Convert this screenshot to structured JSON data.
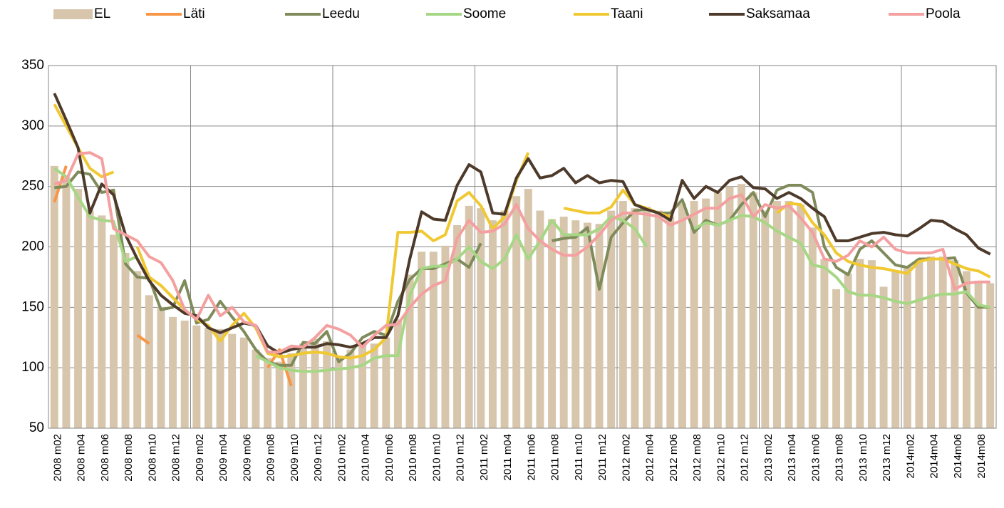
{
  "chart_data": {
    "type": "combo",
    "categories": [
      "2008 m02",
      null,
      "2008 m04",
      null,
      "2008 m06",
      null,
      "2008 m08",
      null,
      "2008 m10",
      null,
      "2008 m12",
      null,
      "2009 m02",
      null,
      "2009 m04",
      null,
      "2009 m06",
      null,
      "2009 m08",
      null,
      "2009 m10",
      null,
      "2009 m12",
      null,
      "2010 m02",
      null,
      "2010 m04",
      null,
      "2010 m06",
      null,
      "2010 m08",
      null,
      "2010 m10",
      null,
      "2010 m12",
      null,
      "2011 m02",
      null,
      "2011 m04",
      null,
      "2011 m06",
      null,
      "2011 m08",
      null,
      "2011 m10",
      null,
      "2011 m12",
      null,
      "2012 m02",
      null,
      "2012 m04",
      null,
      "2012 m06",
      null,
      "2012 m08",
      null,
      "2012 m10",
      null,
      "2012 m12",
      null,
      "2013 m02",
      null,
      "2013 m04",
      null,
      "2013 m06",
      null,
      "2013 m08",
      null,
      "2013 m10",
      null,
      "2013 m12",
      null,
      "2014m02",
      null,
      "2014m04",
      null,
      "2014m06",
      null,
      "2014m08",
      null
    ],
    "ylim": [
      50,
      350
    ],
    "yticks": [
      50,
      100,
      150,
      200,
      250,
      300,
      350
    ],
    "grid": true,
    "legend": "top",
    "series": [
      {
        "name": "EL",
        "type": "bar",
        "color": "#d8c6ac",
        "values": [
          267,
          258,
          248,
          230,
          226,
          210,
          195,
          180,
          160,
          150,
          142,
          139,
          135,
          133,
          132,
          128,
          125,
          115,
          108,
          105,
          112,
          120,
          124,
          122,
          110,
          115,
          120,
          120,
          125,
          140,
          177,
          196,
          196,
          201,
          218,
          234,
          232,
          222,
          230,
          242,
          248,
          230,
          223,
          225,
          222,
          220,
          219,
          230,
          238,
          232,
          233,
          230,
          225,
          236,
          238,
          240,
          245,
          250,
          252,
          245,
          230,
          238,
          238,
          235,
          216,
          190,
          165,
          178,
          190,
          189,
          167,
          180,
          184,
          190,
          192,
          192,
          189,
          180,
          172,
          170
        ]
      },
      {
        "name": "Läti",
        "type": "line",
        "color": "#f79646",
        "values": [
          237,
          267,
          null,
          null,
          null,
          null,
          null,
          127,
          120,
          null,
          null,
          null,
          null,
          null,
          null,
          null,
          null,
          null,
          100,
          115,
          85,
          null,
          null,
          null,
          null,
          null,
          null,
          null,
          null,
          null,
          null,
          null,
          null,
          null,
          null,
          null,
          null,
          null,
          null,
          null,
          null,
          null,
          null,
          null,
          null,
          null,
          null,
          null,
          null,
          null,
          null,
          null,
          null,
          null,
          null,
          null,
          null,
          null,
          null,
          null,
          null,
          null,
          null,
          null,
          null,
          null,
          null,
          null,
          null,
          null,
          null,
          null,
          null,
          null,
          null,
          null,
          null,
          null,
          null,
          null
        ]
      },
      {
        "name": "Leedu",
        "type": "line",
        "color": "#7f8b5b",
        "values": [
          249,
          250,
          262,
          260,
          245,
          247,
          186,
          175,
          174,
          148,
          150,
          172,
          137,
          140,
          155,
          142,
          130,
          115,
          105,
          102,
          102,
          121,
          120,
          130,
          105,
          112,
          125,
          130,
          127,
          155,
          173,
          182,
          182,
          186,
          190,
          183,
          203,
          null,
          null,
          null,
          null,
          null,
          205,
          207,
          208,
          216,
          165,
          208,
          220,
          230,
          231,
          228,
          228,
          239,
          212,
          222,
          218,
          222,
          235,
          245,
          225,
          247,
          251,
          251,
          245,
          200,
          183,
          177,
          198,
          205,
          195,
          185,
          183,
          190,
          190,
          190,
          191,
          162,
          150,
          150
        ]
      },
      {
        "name": "Soome",
        "type": "line",
        "color": "#a6d785",
        "values": [
          265,
          258,
          241,
          225,
          222,
          221,
          188,
          192,
          null,
          null,
          null,
          null,
          null,
          null,
          null,
          null,
          null,
          110,
          105,
          100,
          98,
          97,
          97,
          98,
          99,
          100,
          102,
          108,
          110,
          110,
          160,
          182,
          184,
          184,
          190,
          200,
          188,
          182,
          190,
          210,
          190,
          205,
          222,
          210,
          210,
          210,
          215,
          225,
          222,
          215,
          200,
          null,
          null,
          null,
          215,
          220,
          218,
          222,
          226,
          225,
          220,
          213,
          208,
          203,
          185,
          183,
          175,
          163,
          160,
          160,
          158,
          155,
          153,
          156,
          159,
          161,
          161,
          163,
          152,
          150
        ]
      },
      {
        "name": "Taani",
        "type": "line",
        "color": "#f0c832",
        "values": [
          318,
          300,
          282,
          265,
          258,
          262,
          null,
          200,
          175,
          168,
          158,
          148,
          140,
          135,
          122,
          135,
          145,
          133,
          112,
          109,
          110,
          112,
          113,
          112,
          109,
          108,
          110,
          115,
          125,
          212,
          212,
          213,
          205,
          210,
          238,
          245,
          234,
          215,
          225,
          255,
          278,
          null,
          null,
          232,
          230,
          228,
          228,
          233,
          247,
          235,
          232,
          228,
          225,
          null,
          null,
          null,
          null,
          null,
          null,
          null,
          null,
          228,
          236,
          235,
          220,
          210,
          195,
          188,
          185,
          183,
          182,
          180,
          178,
          188,
          190,
          190,
          186,
          182,
          180,
          175
        ]
      },
      {
        "name": "Saksamaa",
        "type": "line",
        "color": "#4d3a2a",
        "values": [
          327,
          305,
          282,
          228,
          252,
          243,
          210,
          190,
          172,
          160,
          152,
          145,
          143,
          133,
          129,
          133,
          137,
          135,
          118,
          112,
          115,
          117,
          117,
          120,
          119,
          117,
          120,
          125,
          125,
          143,
          190,
          229,
          223,
          222,
          251,
          268,
          262,
          228,
          227,
          257,
          273,
          257,
          259,
          265,
          253,
          259,
          253,
          255,
          254,
          235,
          231,
          228,
          222,
          255,
          240,
          250,
          245,
          255,
          258,
          249,
          248,
          240,
          245,
          240,
          232,
          225,
          205,
          205,
          208,
          211,
          212,
          210,
          209,
          215,
          222,
          221,
          215,
          210,
          199,
          194
        ]
      },
      {
        "name": "Poola",
        "type": "line",
        "color": "#f4a0a0",
        "values": [
          252,
          255,
          277,
          278,
          273,
          215,
          210,
          205,
          192,
          187,
          172,
          148,
          140,
          160,
          143,
          150,
          138,
          135,
          113,
          113,
          118,
          117,
          125,
          135,
          132,
          127,
          117,
          127,
          135,
          136,
          150,
          161,
          168,
          172,
          207,
          222,
          212,
          213,
          219,
          235,
          215,
          205,
          198,
          193,
          193,
          200,
          210,
          222,
          228,
          228,
          227,
          225,
          218,
          222,
          227,
          232,
          232,
          240,
          243,
          225,
          235,
          232,
          234,
          224,
          212,
          190,
          188,
          193,
          205,
          200,
          208,
          198,
          195,
          195,
          195,
          198,
          165,
          170,
          171,
          171
        ]
      }
    ]
  }
}
